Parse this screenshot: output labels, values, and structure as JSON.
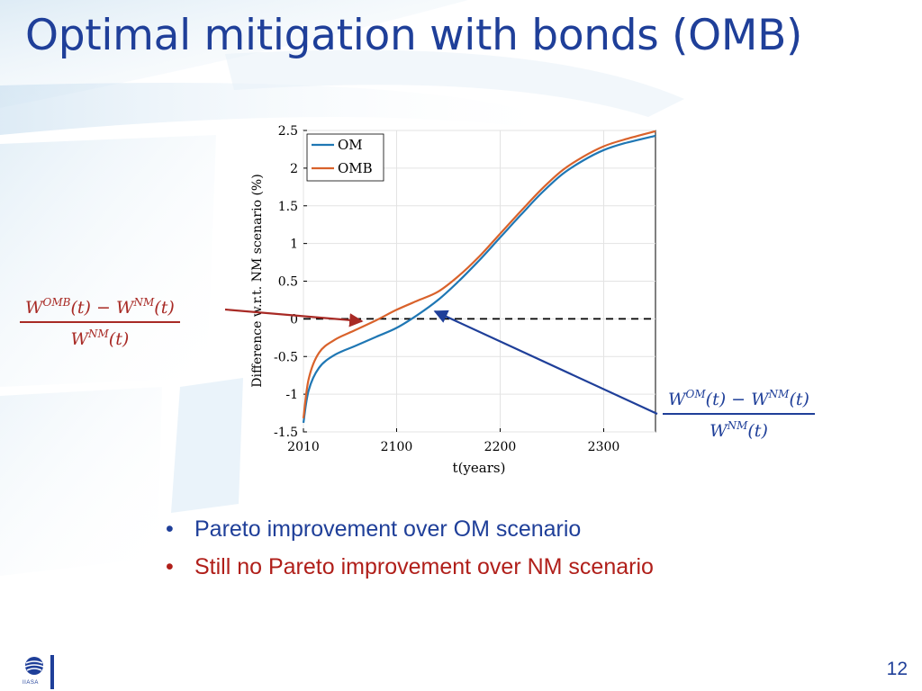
{
  "slide": {
    "title": "Optimal mitigation with bonds (OMB)",
    "page_number": "12"
  },
  "formulas": {
    "omb": {
      "num_a": "W",
      "num_a_sup": "OMB",
      "num_a_arg": "(t) − ",
      "num_b": "W",
      "num_b_sup": "NM",
      "num_b_arg": "(t)",
      "den": "W",
      "den_sup": "NM",
      "den_arg": "(t)"
    },
    "om": {
      "num_a": "W",
      "num_a_sup": "OM",
      "num_a_arg": "(t) − ",
      "num_b": "W",
      "num_b_sup": "NM",
      "num_b_arg": "(t)",
      "den": "W",
      "den_sup": "NM",
      "den_arg": "(t)"
    }
  },
  "bullets": [
    "Pareto improvement over OM scenario",
    "Still no Pareto improvement over NM scenario"
  ],
  "logo": {
    "text": "IIASA",
    "icon": "iiasa-globe-icon"
  },
  "colors": {
    "title": "#1f3f99",
    "om": "#1f77b4",
    "omb": "#d9622b",
    "arrow_red": "#a82a25",
    "arrow_blue": "#1f3f99"
  },
  "chart_data": {
    "type": "line",
    "title": "",
    "xlabel": "t(years)",
    "ylabel": "Difference w.r.t. NM scenario (%)",
    "xlim": [
      2010,
      2350
    ],
    "ylim": [
      -1.5,
      2.5
    ],
    "xticks": [
      2010,
      2100,
      2200,
      2300
    ],
    "yticks": [
      -1.5,
      -1,
      -0.5,
      0,
      0.5,
      1,
      1.5,
      2,
      2.5
    ],
    "grid": true,
    "legend": "top-left",
    "reference_line": {
      "y": 0,
      "style": "dashed"
    },
    "series": [
      {
        "name": "OM",
        "x": [
          2010,
          2015,
          2025,
          2040,
          2060,
          2080,
          2100,
          2120,
          2140,
          2160,
          2180,
          2200,
          2220,
          2240,
          2260,
          2280,
          2300,
          2320,
          2350
        ],
        "y": [
          -1.38,
          -0.95,
          -0.65,
          -0.48,
          -0.36,
          -0.24,
          -0.12,
          0.05,
          0.25,
          0.5,
          0.78,
          1.08,
          1.38,
          1.67,
          1.92,
          2.1,
          2.24,
          2.33,
          2.43
        ]
      },
      {
        "name": "OMB",
        "x": [
          2010,
          2015,
          2025,
          2040,
          2060,
          2080,
          2100,
          2120,
          2140,
          2160,
          2180,
          2200,
          2220,
          2240,
          2260,
          2280,
          2300,
          2320,
          2350
        ],
        "y": [
          -1.32,
          -0.8,
          -0.45,
          -0.28,
          -0.15,
          -0.02,
          0.12,
          0.24,
          0.36,
          0.57,
          0.83,
          1.13,
          1.43,
          1.72,
          1.97,
          2.15,
          2.29,
          2.38,
          2.49
        ]
      }
    ]
  }
}
